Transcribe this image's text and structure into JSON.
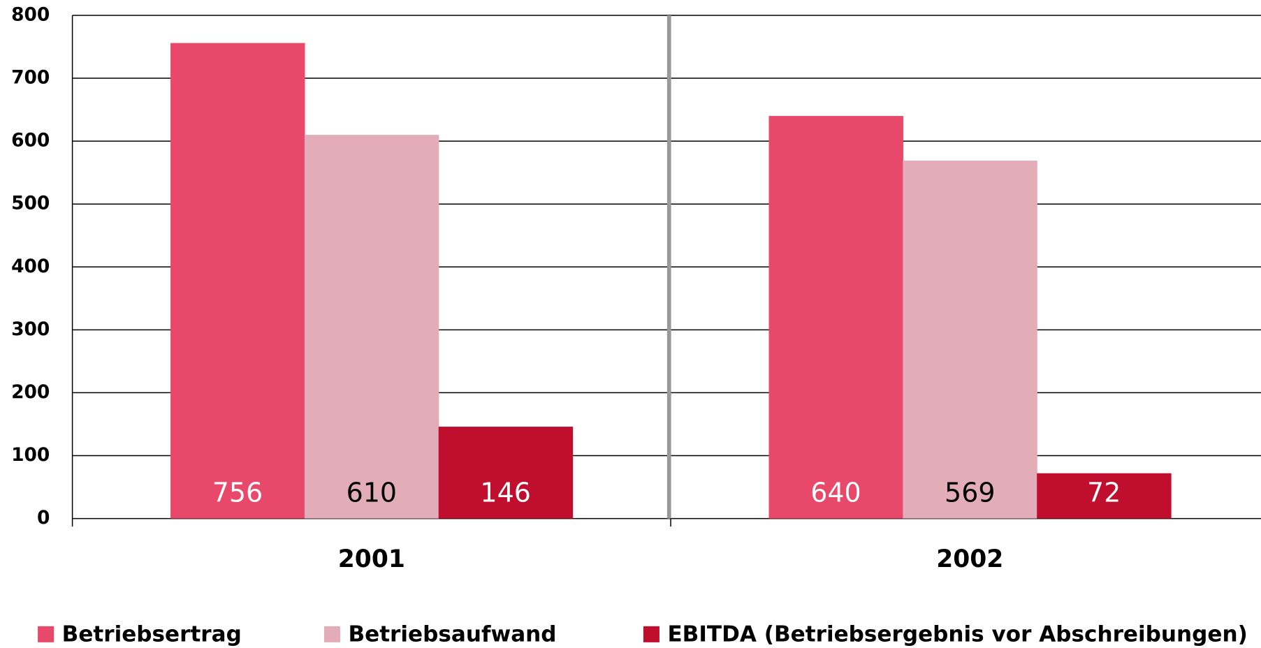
{
  "chart_data": {
    "type": "bar",
    "categories": [
      "2001",
      "2002"
    ],
    "series": [
      {
        "name": "Betriebsertrag",
        "color": "#e8496a",
        "values": [
          756,
          640
        ]
      },
      {
        "name": "Betriebsaufwand",
        "color": "#e2adb9",
        "values": [
          610,
          569
        ]
      },
      {
        "name": "EBITDA (Betriebsergebnis vor Abschreibungen)",
        "color": "#c00e2e",
        "values": [
          146,
          72
        ]
      }
    ],
    "ylim": [
      0,
      800
    ],
    "yticks": [
      0,
      100,
      200,
      300,
      400,
      500,
      600,
      700,
      800
    ],
    "grid": true,
    "legend": "bottom"
  }
}
